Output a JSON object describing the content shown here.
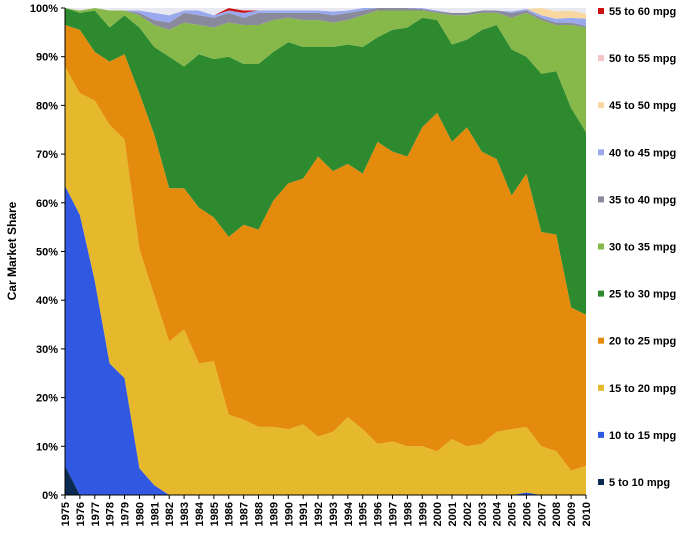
{
  "chart_data": {
    "type": "area",
    "stacked": "percent",
    "title": "",
    "xlabel": "",
    "ylabel": "Car Market Share",
    "ylim": [
      0,
      100
    ],
    "yticks": [
      "0%",
      "10%",
      "20%",
      "30%",
      "40%",
      "50%",
      "60%",
      "70%",
      "80%",
      "90%",
      "100%"
    ],
    "grid": false,
    "legend_position": "right",
    "x": [
      "1975",
      "1976",
      "1977",
      "1978",
      "1979",
      "1980",
      "1981",
      "1982",
      "1983",
      "1984",
      "1985",
      "1986",
      "1987",
      "1988",
      "1989",
      "1990",
      "1991",
      "1992",
      "1993",
      "1994",
      "1995",
      "1996",
      "1997",
      "1998",
      "1999",
      "2000",
      "2001",
      "2002",
      "2003",
      "2004",
      "2005",
      "2006",
      "2007",
      "2008",
      "2009",
      "2010"
    ],
    "series": [
      {
        "name": "5 to 10 mpg",
        "color": "#0b2a52",
        "values": [
          6,
          0,
          0,
          0,
          0,
          0,
          0,
          0,
          0,
          0,
          0,
          0,
          0,
          0,
          0,
          0,
          0,
          0,
          0,
          0,
          0,
          0,
          0,
          0,
          0,
          0,
          0,
          0,
          0,
          0,
          0,
          0,
          0,
          0,
          0,
          0
        ]
      },
      {
        "name": "10 to 15 mpg",
        "color": "#3158e0",
        "values": [
          57.5,
          57.5,
          44,
          27,
          24,
          5.5,
          2,
          0,
          0,
          0,
          0,
          0,
          0,
          0,
          0,
          0,
          0,
          0,
          0,
          0,
          0,
          0,
          0,
          0,
          0,
          0,
          0,
          0,
          0,
          0,
          0,
          0.5,
          0,
          0,
          0,
          0
        ]
      },
      {
        "name": "15 to 20 mpg",
        "color": "#e6b82c",
        "values": [
          24.5,
          25,
          37,
          49,
          49,
          45,
          39,
          31.5,
          34,
          27,
          27.5,
          16.5,
          15.5,
          14,
          14,
          13.5,
          14.5,
          12,
          13,
          16,
          13.5,
          10.5,
          11,
          10,
          10,
          9,
          11.5,
          10,
          10.5,
          13,
          13.5,
          13.5,
          10,
          9,
          5,
          6
        ]
      },
      {
        "name": "20 to 25 mpg",
        "color": "#e48a0c",
        "values": [
          8.5,
          13,
          10,
          13,
          17.5,
          32,
          33,
          31.5,
          29,
          32,
          29.5,
          36.5,
          40,
          40.5,
          46.5,
          50.5,
          50.5,
          57.5,
          53.5,
          52,
          52.5,
          62,
          59.5,
          59.5,
          65.5,
          69.5,
          61,
          65.5,
          60,
          56,
          48,
          52,
          44,
          44.5,
          33.5,
          31
        ]
      },
      {
        "name": "25 to 30 mpg",
        "color": "#2e8a2e",
        "values": [
          3.5,
          3.5,
          8.5,
          7,
          8,
          13.5,
          18,
          27,
          25,
          31.5,
          32.5,
          37,
          33,
          34,
          30.5,
          29,
          27,
          22.5,
          25.5,
          24.5,
          26,
          21.5,
          25,
          26.5,
          22.5,
          19,
          20,
          18,
          25,
          27.5,
          30,
          24,
          32.5,
          33.5,
          41,
          37.5
        ]
      },
      {
        "name": "30 to 35 mpg",
        "color": "#86b84a",
        "values": [
          0,
          0.5,
          0.5,
          3.5,
          1,
          2.5,
          4.5,
          5.5,
          9,
          6,
          6.5,
          7,
          8,
          8,
          6.5,
          5,
          5.5,
          5.5,
          5,
          5,
          6.5,
          5.5,
          4,
          3.5,
          1.5,
          1.5,
          6,
          5,
          3.5,
          2.5,
          6.5,
          9,
          11,
          9.5,
          17,
          21.5
        ]
      },
      {
        "name": "35 to 40 mpg",
        "color": "#8a8a9c",
        "values": [
          0,
          0,
          0,
          0,
          0,
          0.5,
          1,
          1.5,
          2,
          2,
          2,
          2,
          1.5,
          2.5,
          1.5,
          1,
          1.5,
          1.5,
          1.5,
          1.5,
          1,
          0.5,
          0.5,
          0.5,
          0.3,
          0.3,
          0.5,
          0.5,
          0.5,
          0.5,
          1,
          0.5,
          0.5,
          0.5,
          0.5,
          0.3
        ]
      },
      {
        "name": "40 to 45 mpg",
        "color": "#9aa8ee",
        "values": [
          0,
          0,
          0,
          0,
          0,
          0.5,
          1.5,
          1.5,
          0.5,
          1,
          0.5,
          0.5,
          1,
          0.5,
          0.5,
          0.5,
          0.5,
          0.5,
          0.8,
          0.5,
          0.5,
          0,
          0,
          0,
          0.2,
          0.2,
          0,
          0,
          0,
          0,
          0.3,
          0.3,
          0.5,
          0.8,
          1,
          1.5
        ]
      },
      {
        "name": "45 to 50 mpg",
        "color": "#f8d8a0",
        "values": [
          0,
          0,
          0,
          0,
          0,
          0,
          0,
          0,
          0,
          0,
          0,
          0,
          0,
          0,
          0,
          0,
          0,
          0,
          0,
          0,
          0,
          0,
          0,
          0,
          0,
          0,
          0,
          0,
          0,
          0,
          0,
          0,
          1.5,
          1.5,
          1.5,
          1
        ]
      },
      {
        "name": "50 to 55 mpg",
        "color": "#f5c4c4",
        "values": [
          0,
          0,
          0,
          0,
          0,
          0,
          0,
          0,
          0,
          0,
          0,
          0,
          0,
          0,
          0,
          0,
          0,
          0,
          0,
          0,
          0,
          0,
          0,
          0,
          0,
          0,
          0,
          0,
          0,
          0,
          0,
          0,
          0,
          0,
          0,
          0
        ]
      },
      {
        "name": "55 to 60 mpg",
        "color": "#cc1010",
        "values": [
          0,
          0,
          0,
          0,
          0,
          0,
          0,
          0,
          0,
          0,
          0,
          0.5,
          0.5,
          0,
          0,
          0,
          0,
          0,
          0,
          0,
          0,
          0,
          0,
          0,
          0,
          0,
          0,
          0,
          0,
          0,
          0,
          0,
          0,
          0,
          0,
          0
        ]
      }
    ]
  }
}
